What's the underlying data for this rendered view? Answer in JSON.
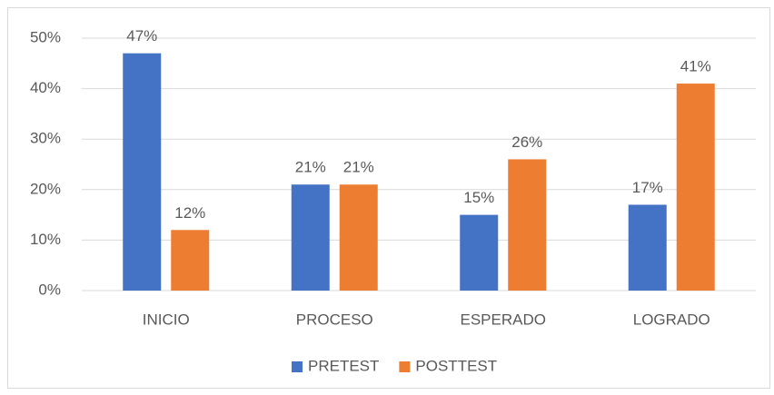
{
  "chart_data": {
    "type": "bar",
    "categories": [
      "INICIO",
      "PROCESO",
      "ESPERADO",
      "LOGRADO"
    ],
    "series": [
      {
        "name": "PRETEST",
        "color": "#4472c4",
        "values": [
          47,
          21,
          15,
          17
        ],
        "value_labels": [
          "47%",
          "21%",
          "15%",
          "17%"
        ]
      },
      {
        "name": "POSTTEST",
        "color": "#ed7d31",
        "values": [
          12,
          21,
          26,
          41
        ],
        "value_labels": [
          "12%",
          "21%",
          "26%",
          "41%"
        ]
      }
    ],
    "ylim": [
      0,
      50
    ],
    "yticks": [
      {
        "value": 0,
        "label": "0%"
      },
      {
        "value": 10,
        "label": "10%"
      },
      {
        "value": 20,
        "label": "20%"
      },
      {
        "value": 30,
        "label": "30%"
      },
      {
        "value": 40,
        "label": "40%"
      },
      {
        "value": 50,
        "label": "50%"
      }
    ],
    "grid": true,
    "legend": "bottom"
  }
}
